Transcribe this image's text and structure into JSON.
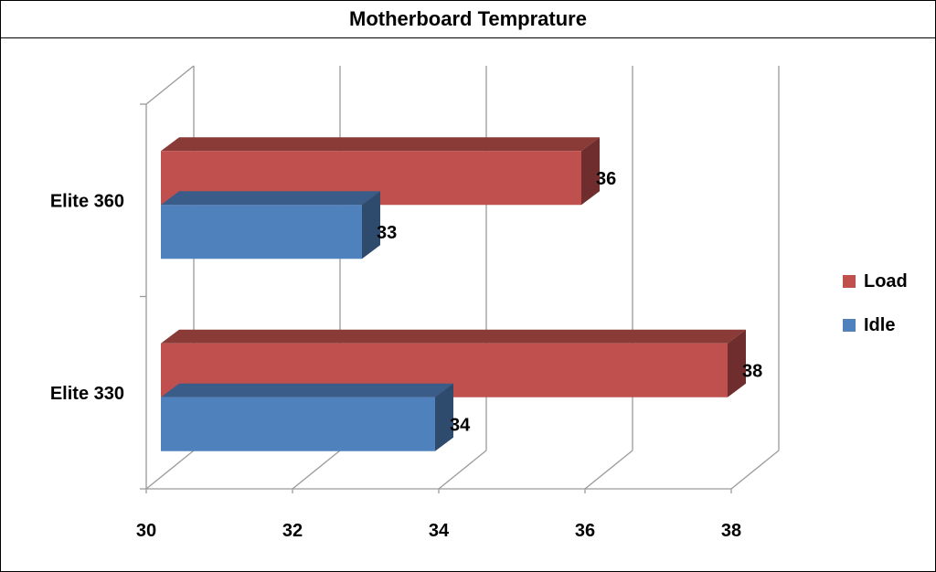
{
  "chart_data": {
    "type": "bar",
    "orientation": "horizontal",
    "three_d": true,
    "title": "Motherboard Temprature",
    "categories": [
      "Elite 360",
      "Elite 330"
    ],
    "series": [
      {
        "name": "Load",
        "values": [
          36,
          38
        ],
        "color": "#C0504D",
        "data_labels": [
          "36",
          "38"
        ]
      },
      {
        "name": "Idle",
        "values": [
          33,
          34
        ],
        "color": "#4F81BD",
        "data_labels": [
          "33",
          "34"
        ]
      }
    ],
    "xlim": [
      30,
      38
    ],
    "x_ticks": [
      "30",
      "32",
      "34",
      "36",
      "38"
    ],
    "grid": true,
    "legend_position": "right",
    "xlabel": "",
    "ylabel": ""
  }
}
